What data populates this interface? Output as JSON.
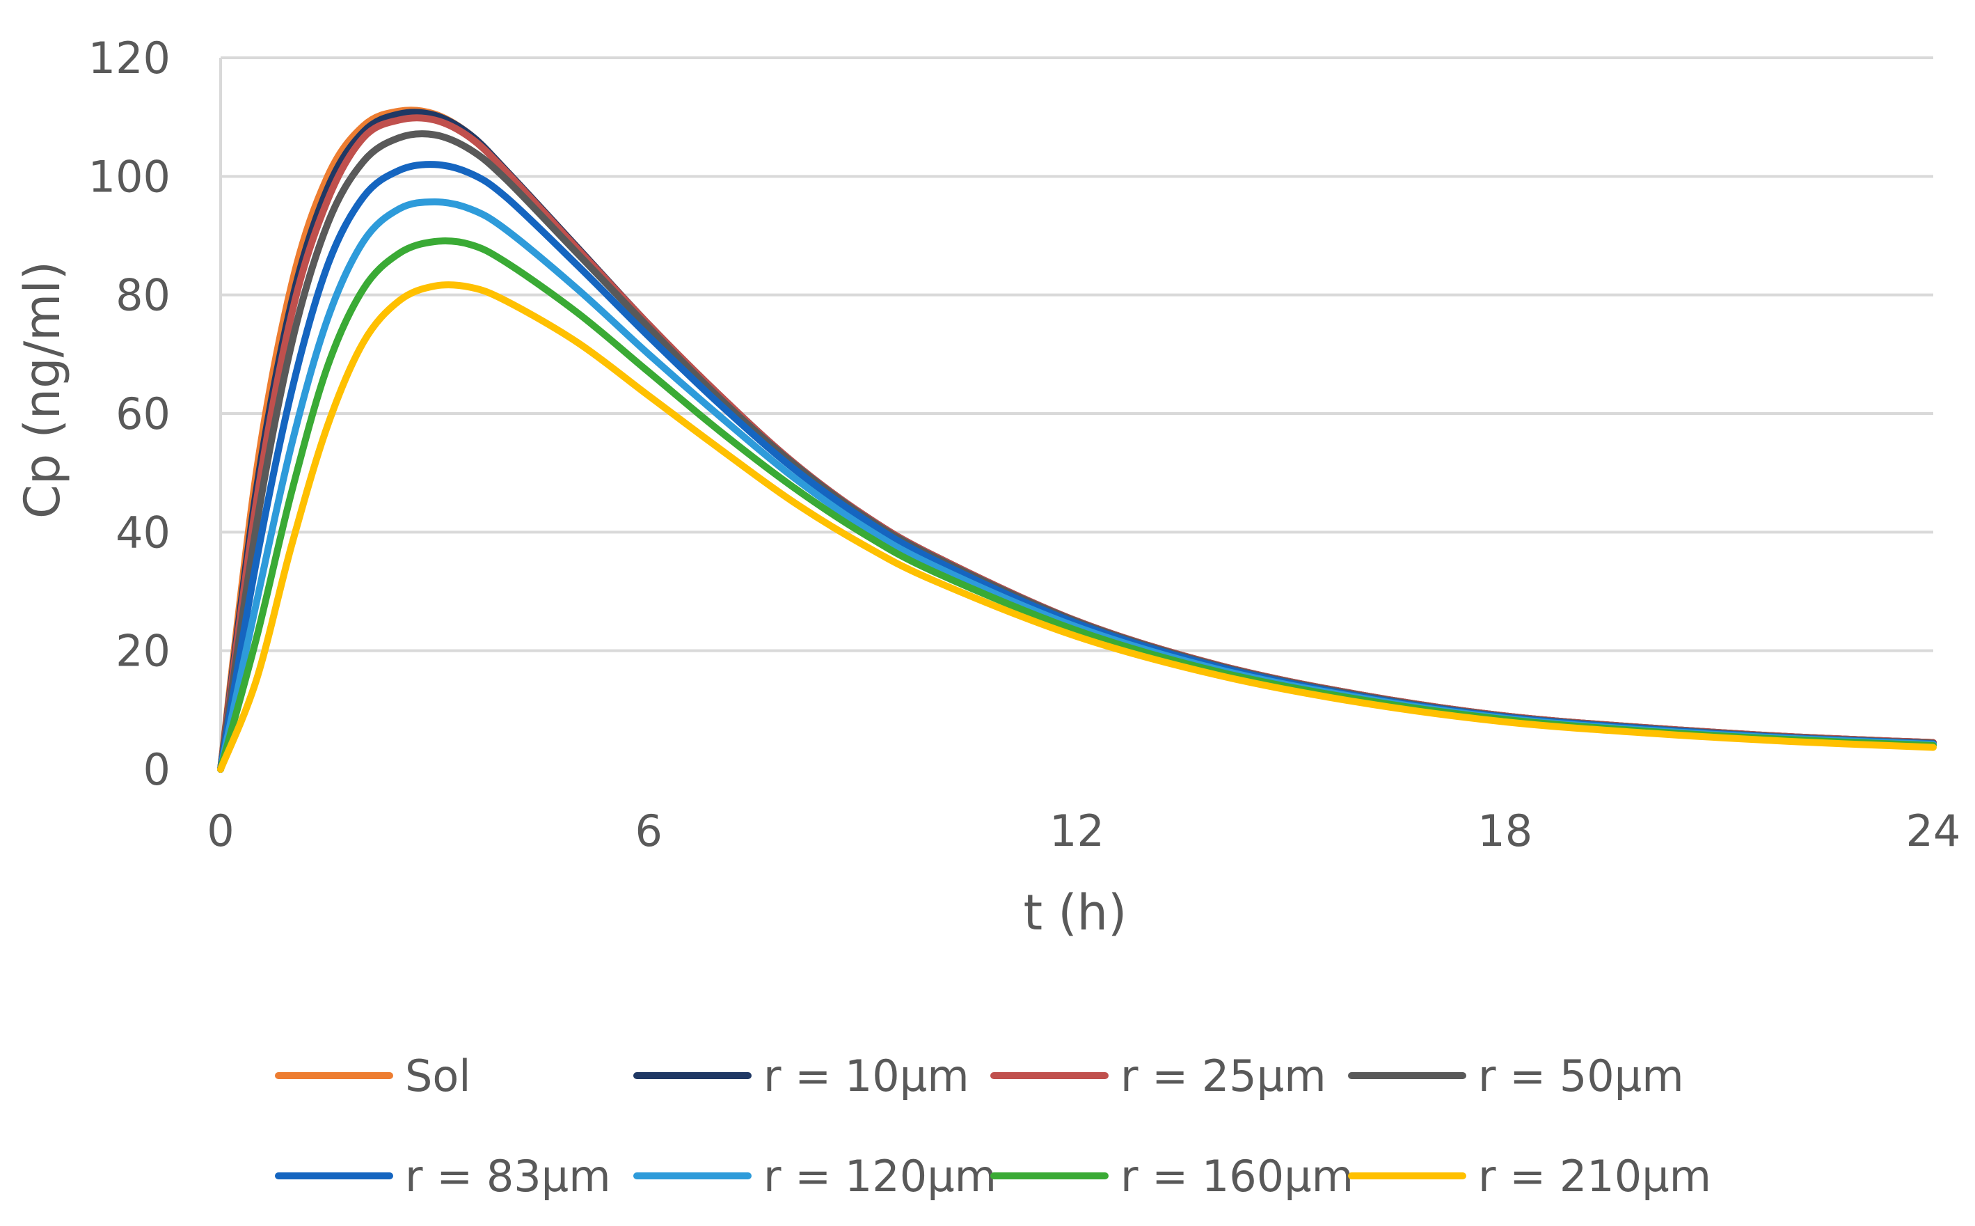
{
  "chart_data": {
    "type": "line",
    "title": "",
    "xlabel": "t (h)",
    "ylabel": "Cp (ng/ml)",
    "xlim": [
      0,
      24
    ],
    "ylim": [
      0,
      120
    ],
    "xticks": [
      0,
      6,
      12,
      18,
      24
    ],
    "yticks": [
      0,
      20,
      40,
      60,
      80,
      100,
      120
    ],
    "grid": true,
    "legend_position": "bottom",
    "x": [
      0,
      0.5,
      1,
      1.5,
      2,
      2.5,
      3,
      3.5,
      4,
      5,
      6,
      7,
      8,
      9,
      10,
      12,
      14,
      16,
      18,
      20,
      22,
      24
    ],
    "series": [
      {
        "name": "Sol",
        "color": "#ED7D31",
        "values": [
          0,
          50,
          82,
          100,
          108.5,
          111,
          110.5,
          107,
          101,
          88,
          75,
          63,
          52,
          43,
          36,
          25,
          17.5,
          12.5,
          9,
          7,
          5.5,
          4.5
        ]
      },
      {
        "name": "r = 10µm",
        "color": "#1F3864",
        "values": [
          0,
          47,
          79,
          98,
          107.5,
          110.5,
          110.3,
          107,
          101,
          88,
          75,
          63,
          52,
          43,
          36,
          25,
          17.5,
          12.5,
          9,
          7,
          5.5,
          4.5
        ]
      },
      {
        "name": "r = 25µm",
        "color": "#C0504D",
        "values": [
          0,
          45,
          77,
          96,
          106.5,
          109.5,
          109.5,
          106.5,
          100.8,
          87.8,
          75,
          63,
          52,
          43,
          36,
          25,
          17.5,
          12.5,
          9,
          7,
          5.5,
          4.5
        ]
      },
      {
        "name": "r = 50µm",
        "color": "#595959",
        "values": [
          0,
          41,
          72,
          92,
          102.5,
          106.5,
          107,
          104.5,
          99.5,
          87,
          74.5,
          62.5,
          51.8,
          42.8,
          35.8,
          24.9,
          17.4,
          12.4,
          8.9,
          6.9,
          5.4,
          4.4
        ]
      },
      {
        "name": "r = 83µm",
        "color": "#1565C0",
        "values": [
          0,
          35,
          64,
          85,
          96.5,
          101,
          102,
          100.5,
          96.5,
          85,
          73,
          61.5,
          51,
          42.3,
          35.3,
          24.6,
          17.2,
          12.2,
          8.8,
          6.8,
          5.3,
          4.3
        ]
      },
      {
        "name": "r = 120µm",
        "color": "#2E9BDA",
        "values": [
          0,
          28,
          55,
          76,
          89,
          94.5,
          95.7,
          94.5,
          91,
          81,
          70,
          59.5,
          49.5,
          41,
          34.3,
          24,
          16.8,
          12,
          8.6,
          6.6,
          5.2,
          4.2
        ]
      },
      {
        "name": "r = 160µm",
        "color": "#3AAA35",
        "values": [
          0,
          22,
          47,
          68,
          81,
          87,
          89,
          88.5,
          85.5,
          77,
          67,
          57,
          47.8,
          39.8,
          33.3,
          23.4,
          16.4,
          11.7,
          8.4,
          6.4,
          5,
          4
        ]
      },
      {
        "name": "r = 210µm",
        "color": "#FFC000",
        "values": [
          0,
          15,
          38,
          58,
          72,
          79,
          81.5,
          81.3,
          79,
          72,
          63,
          54,
          45.3,
          37.9,
          31.8,
          22.4,
          15.8,
          11.2,
          8,
          6.1,
          4.7,
          3.7
        ]
      }
    ]
  }
}
